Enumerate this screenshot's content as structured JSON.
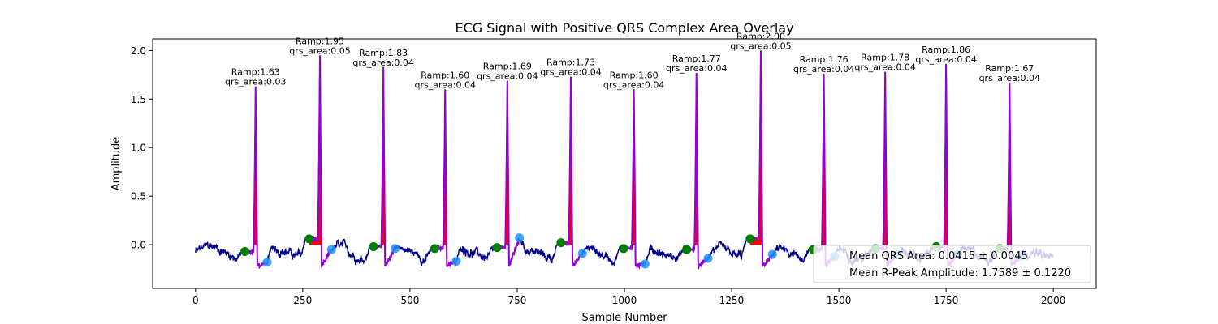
{
  "chart_data": {
    "type": "line",
    "title": "ECG Signal with Positive QRS Complex Area Overlay",
    "xlabel": "Sample Number",
    "ylabel": "Amplitude",
    "xlim": [
      -100,
      2100
    ],
    "ylim": [
      -0.45,
      2.12
    ],
    "xticks": [
      0,
      250,
      500,
      750,
      1000,
      1250,
      1500,
      1750,
      2000
    ],
    "yticks": [
      0.0,
      0.5,
      1.0,
      1.5,
      2.0
    ],
    "ytick_labels": [
      "0.0",
      "0.5",
      "1.0",
      "1.5",
      "2.0"
    ],
    "grid": false,
    "legend_position": "bottom-right",
    "legend": [
      "Mean QRS Area: 0.0415 ± 0.0045",
      "Mean R-Peak Amplitude: 1.7589 ± 0.1220"
    ],
    "colors": {
      "signal": "#00008b",
      "qrs_segment": "#9400d3",
      "qrs_area_fill": "#ff0000",
      "onset_marker": "#008000",
      "offset_marker": "#1e90ff"
    },
    "beats": [
      {
        "r_x": 140,
        "r_amp": 1.63,
        "ramp_label": "Ramp:1.63",
        "area_label": "qrs_area:0.03",
        "onset": [
          115,
          -0.07
        ],
        "offset": [
          167,
          -0.18
        ]
      },
      {
        "r_x": 290,
        "r_amp": 1.95,
        "ramp_label": "Ramp:1.95",
        "area_label": "qrs_area:0.05",
        "onset": [
          265,
          0.06
        ],
        "offset": [
          317,
          -0.05
        ]
      },
      {
        "r_x": 438,
        "r_amp": 1.83,
        "ramp_label": "Ramp:1.83",
        "area_label": "qrs_area:0.04",
        "onset": [
          415,
          -0.02
        ],
        "offset": [
          465,
          -0.04
        ]
      },
      {
        "r_x": 582,
        "r_amp": 1.6,
        "ramp_label": "Ramp:1.60",
        "area_label": "qrs_area:0.04",
        "onset": [
          558,
          -0.04
        ],
        "offset": [
          608,
          -0.17
        ]
      },
      {
        "r_x": 727,
        "r_amp": 1.69,
        "ramp_label": "Ramp:1.69",
        "area_label": "qrs_area:0.04",
        "onset": [
          703,
          -0.03
        ],
        "offset": [
          755,
          0.07
        ]
      },
      {
        "r_x": 875,
        "r_amp": 1.73,
        "ramp_label": "Ramp:1.73",
        "area_label": "qrs_area:0.04",
        "onset": [
          852,
          0.02
        ],
        "offset": [
          902,
          -0.09
        ]
      },
      {
        "r_x": 1022,
        "r_amp": 1.6,
        "ramp_label": "Ramp:1.60",
        "area_label": "qrs_area:0.04",
        "onset": [
          998,
          -0.04
        ],
        "offset": [
          1048,
          -0.2
        ]
      },
      {
        "r_x": 1168,
        "r_amp": 1.77,
        "ramp_label": "Ramp:1.77",
        "area_label": "qrs_area:0.04",
        "onset": [
          1145,
          -0.05
        ],
        "offset": [
          1195,
          -0.14
        ]
      },
      {
        "r_x": 1318,
        "r_amp": 2.0,
        "ramp_label": "Ramp:2.00",
        "area_label": "qrs_area:0.05",
        "onset": [
          1293,
          0.06
        ],
        "offset": [
          1345,
          -0.1
        ]
      },
      {
        "r_x": 1465,
        "r_amp": 1.76,
        "ramp_label": "Ramp:1.76",
        "area_label": "qrs_area:0.04",
        "onset": [
          1440,
          -0.05
        ],
        "offset": [
          1490,
          -0.12
        ]
      },
      {
        "r_x": 1608,
        "r_amp": 1.78,
        "ramp_label": "Ramp:1.78",
        "area_label": "qrs_area:0.04",
        "onset": [
          1585,
          -0.04
        ],
        "offset": [
          1635,
          -0.1
        ]
      },
      {
        "r_x": 1750,
        "r_amp": 1.86,
        "ramp_label": "Ramp:1.86",
        "area_label": "qrs_area:0.04",
        "onset": [
          1727,
          -0.02
        ],
        "offset": [
          1777,
          -0.1
        ]
      },
      {
        "r_x": 1898,
        "r_amp": 1.67,
        "ramp_label": "Ramp:1.67",
        "area_label": "qrs_area:0.04",
        "onset": [
          1875,
          -0.04
        ],
        "offset": [
          1923,
          -0.12
        ]
      }
    ]
  }
}
